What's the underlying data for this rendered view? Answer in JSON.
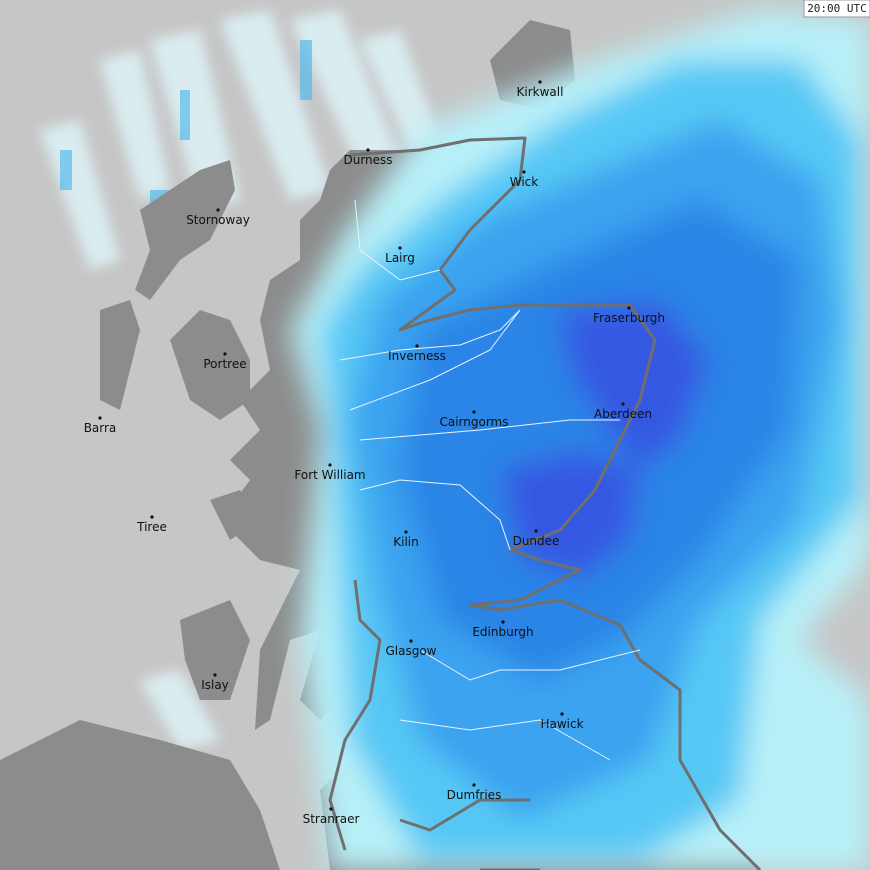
{
  "timestamp": "20:00 UTC",
  "places": [
    "Kirkwall",
    "Durness",
    "Wick",
    "Stornoway",
    "Lairg",
    "Fraserburgh",
    "Inverness",
    "Portree",
    "Aberdeen",
    "Barra",
    "Cairngorms",
    "Fort William",
    "Tiree",
    "Kilin",
    "Dundee",
    "Edinburgh",
    "Glasgow",
    "Islay",
    "Hawick",
    "Dumfries",
    "Stranraer"
  ]
}
